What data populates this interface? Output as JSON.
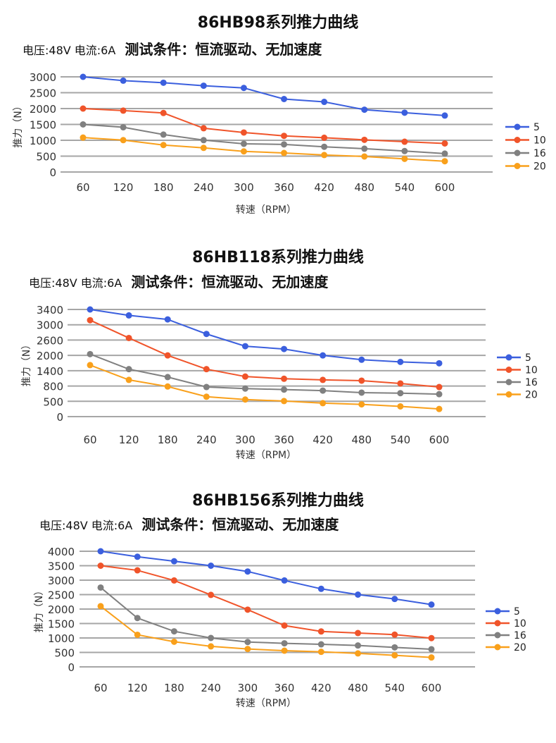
{
  "chart_data": [
    {
      "type": "line",
      "title": "86HB98系列推力曲线",
      "subtitle_params": "电压:48V  电流:6A",
      "subtitle_condition": "测试条件：恒流驱动、无加速度",
      "xlabel": "转速（RPM）",
      "ylabel": "推力（N）",
      "categories": [
        "60",
        "120",
        "180",
        "240",
        "300",
        "360",
        "420",
        "480",
        "540",
        "600"
      ],
      "yticks": [
        "3000",
        "2500",
        "2000",
        "1500",
        "1000",
        "500",
        "0"
      ],
      "ylim": [
        0,
        3000
      ],
      "grid": true,
      "legend_position": "right",
      "series": [
        {
          "name": "5",
          "color": "#3b5fde",
          "values": [
            3000,
            2880,
            2815,
            2720,
            2650,
            2300,
            2210,
            1965,
            1870,
            1780
          ]
        },
        {
          "name": "10",
          "color": "#f0542a",
          "values": [
            2000,
            1935,
            1860,
            1380,
            1245,
            1140,
            1080,
            1015,
            955,
            900
          ]
        },
        {
          "name": "16",
          "color": "#808080",
          "values": [
            1500,
            1410,
            1180,
            1005,
            890,
            870,
            795,
            735,
            660,
            580
          ]
        },
        {
          "name": "20",
          "color": "#f9a01b",
          "values": [
            1085,
            1005,
            850,
            760,
            650,
            600,
            535,
            490,
            415,
            340
          ]
        }
      ]
    },
    {
      "type": "line",
      "title": "86HB118系列推力曲线",
      "subtitle_params": "电压:48V 电流:6A",
      "subtitle_condition": "测试条件：恒流驱动、无加速度",
      "xlabel": "转速（RPM）",
      "ylabel": "推力（N）",
      "categories": [
        "60",
        "120",
        "180",
        "240",
        "300",
        "360",
        "420",
        "480",
        "540",
        "600"
      ],
      "yticks": [
        "3400",
        "3000",
        "2600",
        "2000",
        "1400",
        "800",
        "500",
        "0"
      ],
      "ylim": [
        0,
        3400
      ],
      "y_axis_note": "tick labels are evenly spaced but non-uniform in value",
      "grid": true,
      "legend_position": "right",
      "series": [
        {
          "name": "5",
          "color": "#3b5fde",
          "values": [
            3400,
            3245,
            3140,
            2760,
            2360,
            2250,
            2000,
            1830,
            1745,
            1690
          ]
        },
        {
          "name": "10",
          "color": "#f0542a",
          "values": [
            3120,
            2655,
            2000,
            1460,
            1170,
            1085,
            1040,
            1010,
            900,
            780
          ]
        },
        {
          "name": "16",
          "color": "#808080",
          "values": [
            2050,
            1460,
            1150,
            780,
            750,
            730,
            710,
            670,
            660,
            640
          ]
        },
        {
          "name": "20",
          "color": "#f9a01b",
          "values": [
            1620,
            1040,
            790,
            590,
            535,
            505,
            440,
            400,
            335,
            250
          ]
        }
      ]
    },
    {
      "type": "line",
      "title": "86HB156系列推力曲线",
      "subtitle_params": "电压:48V 电流:6A",
      "subtitle_condition": "测试条件：恒流驱动、无加速度",
      "xlabel": "转速（RPM）",
      "ylabel": "推力（N）",
      "categories": [
        "60",
        "120",
        "180",
        "240",
        "300",
        "360",
        "420",
        "480",
        "540",
        "600"
      ],
      "yticks": [
        "4000",
        "3500",
        "3000",
        "2500",
        "2000",
        "1500",
        "1000",
        "500",
        "0"
      ],
      "ylim": [
        0,
        4000
      ],
      "grid": true,
      "legend_position": "right",
      "series": [
        {
          "name": "5",
          "color": "#3b5fde",
          "values": [
            4000,
            3810,
            3655,
            3500,
            3300,
            2990,
            2700,
            2500,
            2350,
            2155
          ]
        },
        {
          "name": "10",
          "color": "#f0542a",
          "values": [
            3500,
            3340,
            2990,
            2490,
            1980,
            1430,
            1225,
            1170,
            1115,
            995
          ]
        },
        {
          "name": "16",
          "color": "#808080",
          "values": [
            2745,
            1690,
            1230,
            1000,
            860,
            815,
            780,
            740,
            675,
            610
          ]
        },
        {
          "name": "20",
          "color": "#f9a01b",
          "values": [
            2100,
            1110,
            870,
            710,
            620,
            560,
            520,
            465,
            400,
            325
          ]
        }
      ]
    }
  ]
}
